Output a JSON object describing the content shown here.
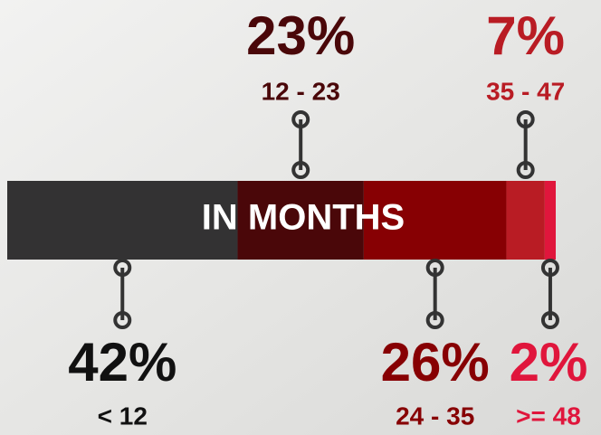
{
  "chart_data": {
    "type": "stacked-bar",
    "title": "IN MONTHS",
    "categories": [
      "< 12",
      "12 - 23",
      "24 - 35",
      "35 - 47",
      ">= 48"
    ],
    "values": [
      42,
      23,
      26,
      7,
      2
    ],
    "value_labels": [
      "42%",
      "23%",
      "26%",
      "7%",
      "2%"
    ],
    "colors": [
      "#333233",
      "#4a0709",
      "#870003",
      "#b91c24",
      "#e0163c"
    ],
    "label_colors": [
      "#111111",
      "#4a0709",
      "#870003",
      "#b91c24",
      "#e0163c"
    ]
  }
}
